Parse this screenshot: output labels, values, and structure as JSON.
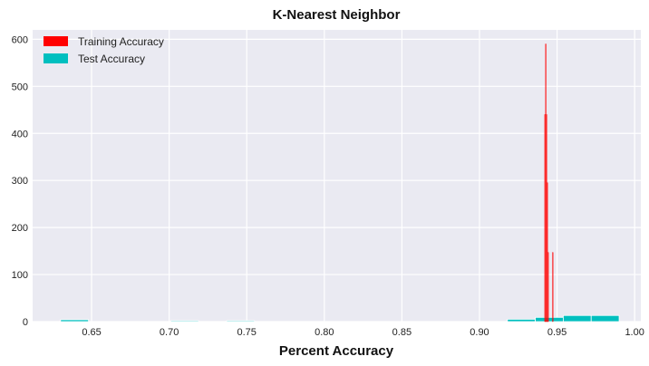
{
  "chart_data": {
    "type": "bar",
    "title": "K-Nearest Neighbor",
    "xlabel": "Percent Accuracy",
    "ylabel": "",
    "xlim": [
      0.612,
      1.004
    ],
    "ylim": [
      0,
      620
    ],
    "xticks": [
      "0.65",
      "0.70",
      "0.75",
      "0.80",
      "0.85",
      "0.90",
      "0.95",
      "1.00"
    ],
    "yticks": [
      "0",
      "100",
      "200",
      "300",
      "400",
      "500",
      "600"
    ],
    "grid": true,
    "legend": "top-left",
    "series": [
      {
        "name": "Training Accuracy",
        "color": "#ff0000",
        "bins": [
          {
            "x0": 0.942,
            "x1": 0.9425,
            "value": 440
          },
          {
            "x0": 0.9425,
            "x1": 0.943,
            "value": 590
          },
          {
            "x0": 0.943,
            "x1": 0.9435,
            "value": 440
          },
          {
            "x0": 0.9435,
            "x1": 0.944,
            "value": 295
          },
          {
            "x0": 0.944,
            "x1": 0.9445,
            "value": 147
          },
          {
            "x0": 0.947,
            "x1": 0.9475,
            "value": 147
          }
        ]
      },
      {
        "name": "Test Accuracy",
        "color": "#00bfbf",
        "bins": [
          {
            "x0": 0.63,
            "x1": 0.648,
            "value": 4
          },
          {
            "x0": 0.701,
            "x1": 0.719,
            "value": 2
          },
          {
            "x0": 0.737,
            "x1": 0.755,
            "value": 2
          },
          {
            "x0": 0.918,
            "x1": 0.936,
            "value": 5
          },
          {
            "x0": 0.936,
            "x1": 0.954,
            "value": 9
          },
          {
            "x0": 0.954,
            "x1": 0.972,
            "value": 13
          },
          {
            "x0": 0.972,
            "x1": 0.99,
            "value": 13
          }
        ]
      }
    ]
  }
}
